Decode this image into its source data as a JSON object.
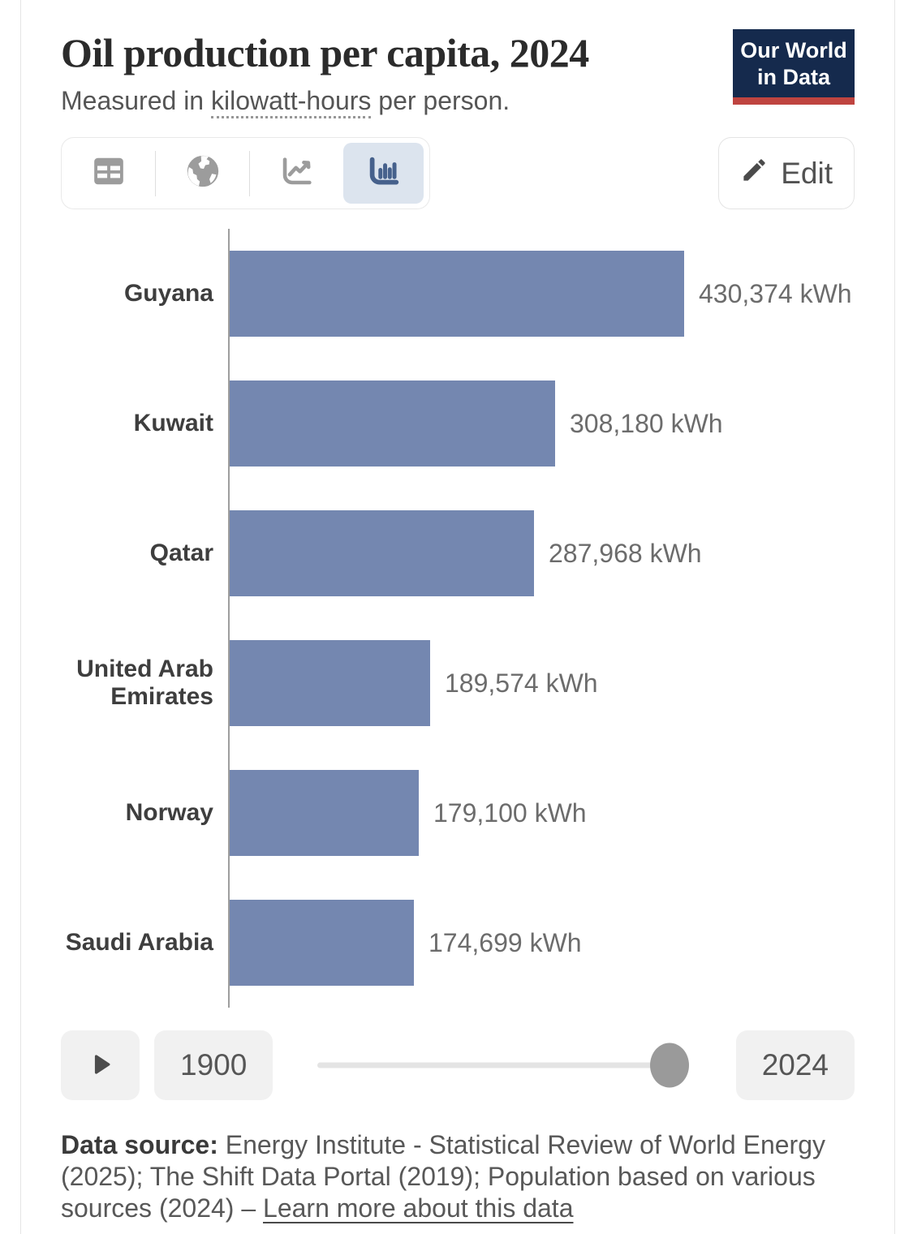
{
  "header": {
    "title": "Oil production per capita, 2024",
    "subtitle": {
      "prefix": "Measured in ",
      "term": "kilowatt-hours",
      "suffix": " per person."
    },
    "logo": {
      "line1": "Our World",
      "line2": "in Data"
    },
    "edit_label": "Edit"
  },
  "toolbar": {
    "tabs": [
      {
        "icon": "table-icon",
        "selected": false
      },
      {
        "icon": "globe-icon",
        "selected": false
      },
      {
        "icon": "line-chart-icon",
        "selected": false
      },
      {
        "icon": "bar-chart-icon",
        "selected": true
      }
    ]
  },
  "chart_data": {
    "type": "bar",
    "orientation": "horizontal",
    "title": "Oil production per capita, 2024",
    "unit": "kWh per person",
    "categories": [
      "Guyana",
      "Kuwait",
      "Qatar",
      "United Arab Emirates",
      "Norway",
      "Saudi Arabia"
    ],
    "values": [
      430374,
      308180,
      287968,
      189574,
      179100,
      174699
    ],
    "value_labels": [
      "430,374 kWh",
      "308,180 kWh",
      "287,968 kWh",
      "189,574 kWh",
      "179,100 kWh",
      "174,699 kWh"
    ],
    "xlim": [
      0,
      430374
    ],
    "grid": false,
    "legend": "none",
    "bar_color": "#7487b0"
  },
  "timeline": {
    "start_year": "1900",
    "end_year": "2024",
    "selected_year": "2024"
  },
  "footer": {
    "label": "Data source:",
    "text": " Energy Institute - Statistical Review of World Energy (2025); The Shift Data Portal (2019); Population based on various sources (2024) – ",
    "link": "Learn more about this data"
  },
  "colors": {
    "bar": "#7487b0",
    "logo_bg": "#152a4d",
    "logo_stripe": "#bf4440",
    "selected_tab_bg": "#dce4ee",
    "selected_tab_icon": "#46618c",
    "inactive_icon": "#9c9c9c",
    "axis": "#9e9e9e"
  }
}
